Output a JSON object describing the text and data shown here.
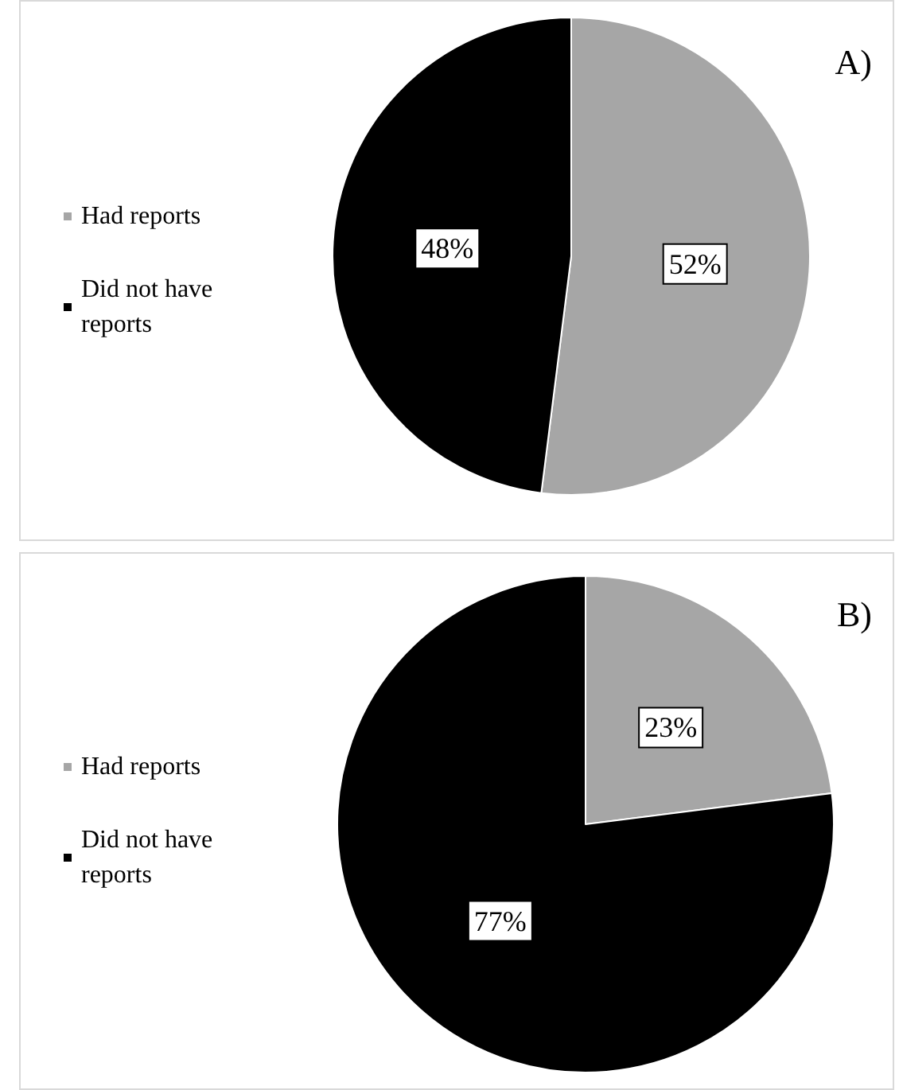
{
  "chart_data": [
    {
      "type": "pie",
      "title": "A)",
      "categories": [
        "Had reports",
        "Did not have reports"
      ],
      "values": [
        52,
        48
      ],
      "value_labels": [
        "52%",
        "48%"
      ],
      "colors": [
        "#a6a6a6",
        "#000000"
      ],
      "legend": "left"
    },
    {
      "type": "pie",
      "title": "B)",
      "categories": [
        "Had reports",
        "Did not have reports"
      ],
      "values": [
        23,
        77
      ],
      "value_labels": [
        "23%",
        "77%"
      ],
      "colors": [
        "#a6a6a6",
        "#000000"
      ],
      "legend": "left"
    }
  ]
}
